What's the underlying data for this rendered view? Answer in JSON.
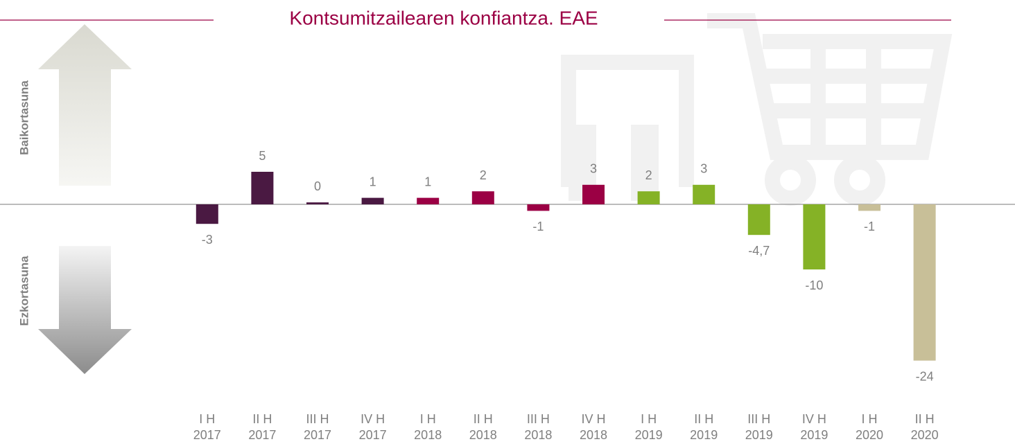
{
  "chart_data": {
    "type": "bar",
    "title": "Kontsumitzailearen konfiantza. EAE",
    "positive_label": "Baikortasuna",
    "negative_label": "Ezkortasuna",
    "categories": [
      [
        "I H",
        "2017"
      ],
      [
        "II H",
        "2017"
      ],
      [
        "III H",
        "2017"
      ],
      [
        "IV H",
        "2017"
      ],
      [
        "I H",
        "2018"
      ],
      [
        "II H",
        "2018"
      ],
      [
        "III H",
        "2018"
      ],
      [
        "IV H",
        "2018"
      ],
      [
        "I H",
        "2019"
      ],
      [
        "II H",
        "2019"
      ],
      [
        "III H",
        "2019"
      ],
      [
        "IV H",
        "2019"
      ],
      [
        "I H",
        "2020"
      ],
      [
        "II H",
        "2020"
      ]
    ],
    "values": [
      -3,
      5,
      0.3,
      1,
      1,
      2,
      -1,
      3,
      2,
      3,
      -4.7,
      -10,
      -1,
      -24
    ],
    "value_labels": [
      "-3",
      "5",
      "0",
      "1",
      "1",
      "2",
      "-1",
      "3",
      "2",
      "3",
      "-4,7",
      "-10",
      "-1",
      "-24"
    ],
    "colors": [
      "#4a1942",
      "#4a1942",
      "#4a1942",
      "#4a1942",
      "#9b0044",
      "#9b0044",
      "#9b0044",
      "#9b0044",
      "#85b226",
      "#85b226",
      "#85b226",
      "#85b226",
      "#c8bf98",
      "#c8bf98"
    ],
    "ylim": [
      -30,
      20
    ]
  }
}
